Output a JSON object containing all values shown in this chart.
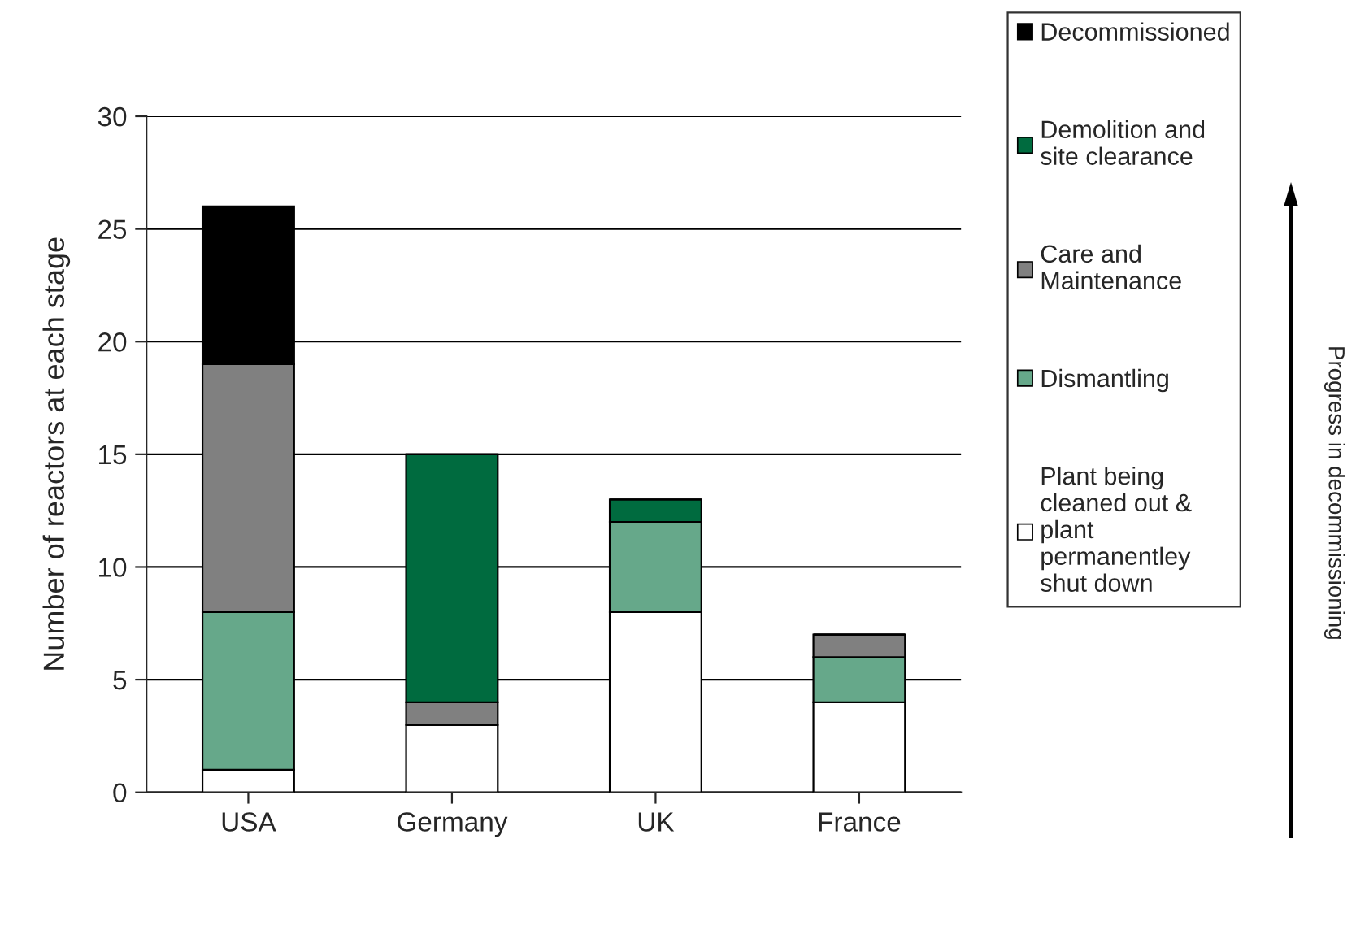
{
  "chart_data": {
    "type": "bar",
    "stacked": true,
    "ylabel": "Number of reactors at each stage",
    "categories": [
      "USA",
      "Germany",
      "UK",
      "France"
    ],
    "series": [
      {
        "name": "Plant being\ncleaned out &\nplant\npermanentley\nshut down",
        "color": "#ffffff",
        "values": [
          1,
          3,
          8,
          4
        ]
      },
      {
        "name": "Dismantling",
        "color": "#66a88a",
        "values": [
          7,
          0,
          4,
          2
        ]
      },
      {
        "name": "Care and\nMaintenance",
        "color": "#808080",
        "values": [
          11,
          1,
          0,
          1
        ]
      },
      {
        "name": "Demolition and\nsite clearance",
        "color": "#006b3f",
        "values": [
          0,
          11,
          1,
          0
        ]
      },
      {
        "name": "Decommissioned",
        "color": "#000000",
        "values": [
          7,
          0,
          0,
          0
        ]
      }
    ],
    "ylim": [
      0,
      30
    ],
    "yticks": [
      0,
      5,
      10,
      15,
      20,
      25,
      30
    ],
    "grid": "y",
    "legend": "right",
    "annotations": [
      "Progress in decommissioning"
    ]
  }
}
